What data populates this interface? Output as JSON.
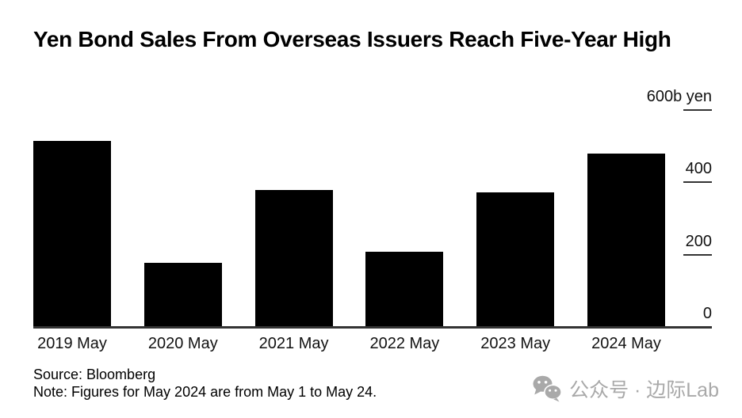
{
  "title": "Yen Bond Sales From Overseas Issuers Reach Five-Year High",
  "chart_data": {
    "type": "bar",
    "title": "Yen Bond Sales From Overseas Issuers Reach Five-Year High",
    "categories": [
      "2019 May",
      "2020 May",
      "2021 May",
      "2022 May",
      "2023 May",
      "2024 May"
    ],
    "values": [
      515,
      178,
      378,
      208,
      373,
      480
    ],
    "unit": "b yen",
    "xlabel": "",
    "ylabel": "",
    "ylim": [
      0,
      600
    ],
    "y_axis_side": "right",
    "grid": "off",
    "legend": "none",
    "y_ticks": [
      {
        "value": 600,
        "label": "600b yen"
      },
      {
        "value": 400,
        "label": "400"
      },
      {
        "value": 200,
        "label": "200"
      },
      {
        "value": 0,
        "label": "0"
      }
    ],
    "bar_color": "#000000",
    "axis_color": "#333333"
  },
  "footer": {
    "source": "Source: Bloomberg",
    "note": "Note: Figures for May 2024 are from May 1 to May 24."
  },
  "watermark": {
    "icon": "wechat-icon",
    "text": "公众号 · 边际Lab",
    "color": "#a9a9a9"
  }
}
